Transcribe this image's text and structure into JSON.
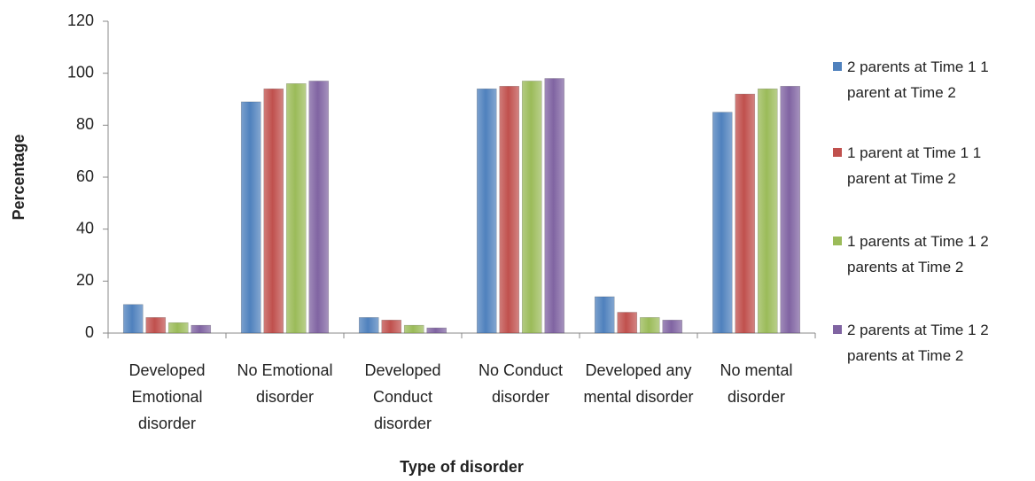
{
  "chart_data": {
    "type": "bar",
    "x_label": "Type of disorder",
    "y_label": "Percentage",
    "categories": [
      "Developed Emotional disorder",
      "No Emotional disorder",
      "Developed Conduct disorder",
      "No Conduct disorder",
      "Developed any mental disorder",
      "No mental disorder"
    ],
    "series": [
      {
        "name": "2 parents at Time 1  1 parent at Time 2",
        "color": "#4f81bd",
        "values": [
          11,
          89,
          6,
          94,
          14,
          85
        ]
      },
      {
        "name": "1 parent at Time 1  1 parent at Time 2",
        "color": "#c0504d",
        "values": [
          6,
          94,
          5,
          95,
          8,
          92
        ]
      },
      {
        "name": "1 parents at Time 1  2 parents at Time 2",
        "color": "#9bbb59",
        "values": [
          4,
          96,
          3,
          97,
          6,
          94
        ]
      },
      {
        "name": "2 parents at Time 1  2 parents at Time 2",
        "color": "#8064a2",
        "values": [
          3,
          97,
          2,
          98,
          5,
          95
        ]
      }
    ],
    "ylim": [
      0,
      120
    ],
    "yticks": [
      0,
      20,
      40,
      60,
      80,
      100,
      120
    ]
  }
}
